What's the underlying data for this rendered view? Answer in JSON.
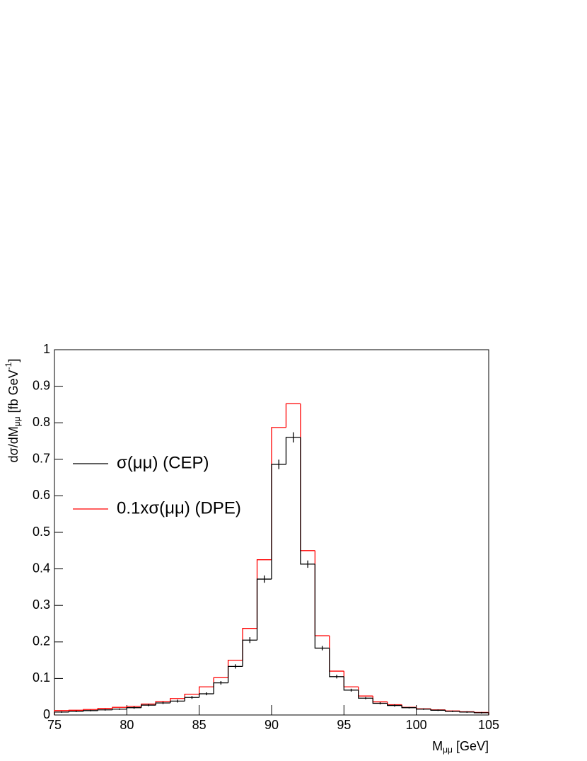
{
  "chart_data": {
    "type": "histogram",
    "xlabel": [
      "M",
      "μμ",
      " [GeV]"
    ],
    "ylabel": [
      "dσ/dM",
      "μμ",
      " [fb GeV",
      "-1",
      "]"
    ],
    "bins": [
      75,
      76,
      77,
      78,
      79,
      80,
      81,
      82,
      83,
      84,
      85,
      86,
      87,
      88,
      89,
      90,
      91,
      92,
      93,
      94,
      95,
      96,
      97,
      98,
      99,
      100,
      101,
      102,
      103,
      104,
      105
    ],
    "series": [
      {
        "name": "σ(μμ) (CEP)",
        "color": "#000000",
        "values": [
          0.008,
          0.01,
          0.012,
          0.014,
          0.016,
          0.02,
          0.027,
          0.033,
          0.038,
          0.048,
          0.058,
          0.088,
          0.133,
          0.205,
          0.372,
          0.686,
          0.76,
          0.413,
          0.183,
          0.105,
          0.068,
          0.046,
          0.032,
          0.026,
          0.02,
          0.016,
          0.013,
          0.01,
          0.008,
          0.006
        ],
        "errors": [
          0.002,
          0.002,
          0.002,
          0.002,
          0.002,
          0.003,
          0.003,
          0.003,
          0.004,
          0.004,
          0.004,
          0.005,
          0.006,
          0.008,
          0.01,
          0.013,
          0.014,
          0.01,
          0.006,
          0.005,
          0.004,
          0.003,
          0.003,
          0.003,
          0.002,
          0.002,
          0.002,
          0.002,
          0.002,
          0.002
        ]
      },
      {
        "name": "0.1xσ(μμ) (DPE)",
        "color": "#ff0000",
        "values": [
          0.012,
          0.013,
          0.015,
          0.018,
          0.021,
          0.024,
          0.03,
          0.037,
          0.045,
          0.057,
          0.077,
          0.102,
          0.15,
          0.237,
          0.425,
          0.787,
          0.852,
          0.45,
          0.217,
          0.12,
          0.077,
          0.052,
          0.036,
          0.028,
          0.021,
          0.017,
          0.014,
          0.011,
          0.009,
          0.007
        ]
      }
    ],
    "xlim": [
      75,
      105
    ],
    "xticks": [
      75,
      80,
      85,
      90,
      95,
      100,
      105
    ],
    "ylim": [
      0,
      1
    ],
    "yticks": [
      0,
      0.1,
      0.2,
      0.3,
      0.4,
      0.5,
      0.6,
      0.7,
      0.8,
      0.9,
      1
    ],
    "legend": "left"
  }
}
